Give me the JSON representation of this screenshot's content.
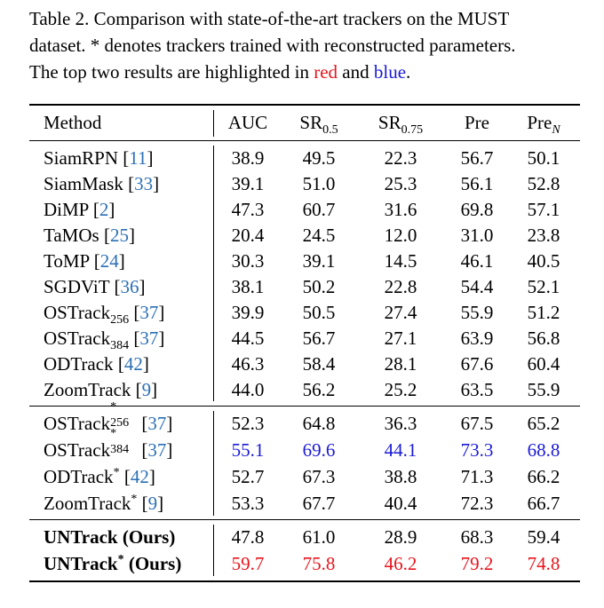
{
  "caption": {
    "line1": "Table 2.  Comparison with state-of-the-art trackers on the MUST",
    "line2": "dataset. * denotes trackers trained with reconstructed parameters.",
    "line3_prefix": "The top two results are highlighted in ",
    "red_word": "red",
    "and_word": " and ",
    "blue_word": "blue",
    "period": "."
  },
  "header": {
    "method": "Method",
    "auc": "AUC",
    "sr": "SR",
    "sr_sub1": "0.5",
    "sr_sub2": "0.75",
    "pre": "Pre",
    "pren": "Pre",
    "pren_sub": "N"
  },
  "colors": {
    "first": "#e8141c",
    "second": "#1a1ad6",
    "citation": "#2c6fb5"
  },
  "group1": [
    {
      "name": "SiamRPN",
      "cite": "11",
      "v": [
        "38.9",
        "49.5",
        "22.3",
        "56.7",
        "50.1"
      ]
    },
    {
      "name": "SiamMask",
      "cite": "33",
      "v": [
        "39.1",
        "51.0",
        "25.3",
        "56.1",
        "52.8"
      ]
    },
    {
      "name": "DiMP",
      "cite": "2",
      "v": [
        "47.3",
        "60.7",
        "31.6",
        "69.8",
        "57.1"
      ]
    },
    {
      "name": "TaMOs",
      "cite": "25",
      "v": [
        "20.4",
        "24.5",
        "12.0",
        "31.0",
        "23.8"
      ]
    },
    {
      "name": "ToMP",
      "cite": "24",
      "v": [
        "30.3",
        "39.1",
        "14.5",
        "46.1",
        "40.5"
      ]
    },
    {
      "name": "SGDViT",
      "cite": "36",
      "v": [
        "38.1",
        "50.2",
        "22.8",
        "54.4",
        "52.1"
      ]
    },
    {
      "name": "OSTrack",
      "sub": "256",
      "cite": "37",
      "v": [
        "39.9",
        "50.5",
        "27.4",
        "55.9",
        "51.2"
      ]
    },
    {
      "name": "OSTrack",
      "sub": "384",
      "cite": "37",
      "v": [
        "44.5",
        "56.7",
        "27.1",
        "63.9",
        "56.8"
      ]
    },
    {
      "name": "ODTrack",
      "cite": "42",
      "v": [
        "46.3",
        "58.4",
        "28.1",
        "67.6",
        "60.4"
      ]
    },
    {
      "name": "ZoomTrack",
      "cite": "9",
      "v": [
        "44.0",
        "56.2",
        "25.2",
        "63.5",
        "55.9"
      ]
    }
  ],
  "group2": [
    {
      "name": "OSTrack",
      "sup": "*",
      "sub": "256",
      "cite": "37",
      "v": [
        "52.3",
        "64.8",
        "36.3",
        "67.5",
        "65.2"
      ]
    },
    {
      "name": "OSTrack",
      "sup": "*",
      "sub": "384",
      "cite": "37",
      "v": [
        "55.1",
        "69.6",
        "44.1",
        "73.3",
        "68.8"
      ],
      "highlight": "second"
    },
    {
      "name": "ODTrack",
      "sup": "*",
      "cite": "42",
      "v": [
        "52.7",
        "67.3",
        "38.8",
        "71.3",
        "66.2"
      ]
    },
    {
      "name": "ZoomTrack",
      "sup": "*",
      "cite": "9",
      "v": [
        "53.3",
        "67.7",
        "40.4",
        "72.3",
        "66.7"
      ]
    }
  ],
  "group3": [
    {
      "name": "UNTrack (Ours)",
      "v": [
        "47.8",
        "61.0",
        "28.9",
        "68.3",
        "59.4"
      ]
    },
    {
      "name": "UNTrack",
      "sup": "*",
      "suffix": " (Ours)",
      "v": [
        "59.7",
        "75.8",
        "46.2",
        "79.2",
        "74.8"
      ],
      "highlight": "first"
    }
  ]
}
